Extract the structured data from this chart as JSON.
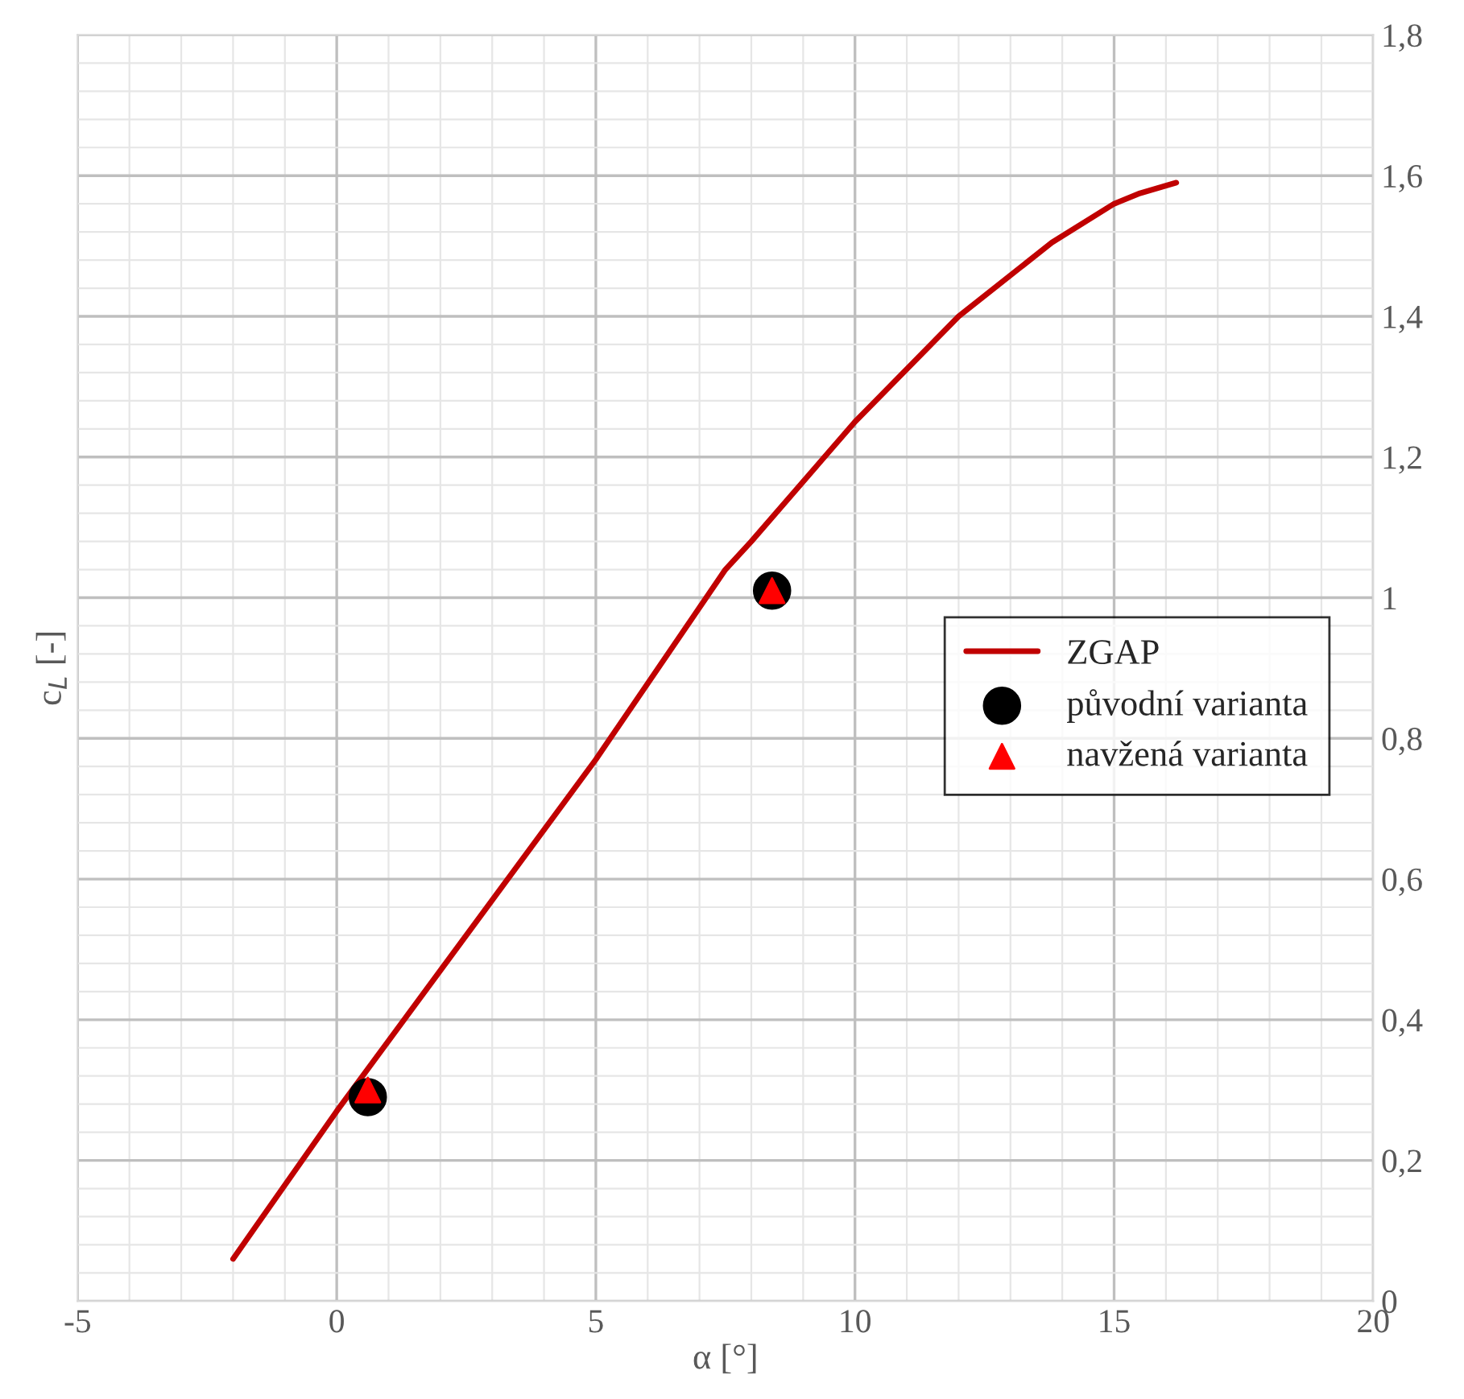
{
  "chart_data": {
    "type": "line",
    "xlabel": "α [°]",
    "ylabel": "c$_{L}$ [-]",
    "xlim": [
      -5,
      20
    ],
    "xticks": [
      -5,
      0,
      5,
      10,
      15,
      20
    ],
    "ylim": [
      0,
      1.8
    ],
    "yticks": [
      0,
      {
        "value": 0.2,
        "label": "0,2"
      },
      {
        "value": 0.4,
        "label": "0,4"
      },
      {
        "value": 0.6,
        "label": "0,6"
      },
      {
        "value": 0.8,
        "label": "0,8"
      },
      1,
      {
        "value": 1.2,
        "label": "1,2"
      },
      {
        "value": 1.4,
        "label": "1,4"
      },
      {
        "value": 1.6,
        "label": "1,6"
      },
      {
        "value": 1.8,
        "label": "1,8"
      }
    ],
    "grid": true,
    "legend": "center right",
    "series": [
      {
        "name": "ZGAP",
        "color": "#c00000",
        "marker": "none",
        "x": [
          -2,
          0,
          2,
          5,
          7.5,
          8,
          10,
          12,
          13.8,
          15,
          15.5,
          16.2
        ],
        "values": [
          0.06,
          0.27,
          0.47,
          0.77,
          1.04,
          1.08,
          1.25,
          1.4,
          1.505,
          1.56,
          1.575,
          1.59
        ]
      },
      {
        "name": "původní varianta",
        "type": "scatter",
        "color": "#000000",
        "marker": "circle",
        "x": [
          0.6,
          8.4
        ],
        "values": [
          0.29,
          1.01
        ]
      },
      {
        "name": "navžená varianta",
        "type": "scatter",
        "color": "#ff0000",
        "marker": "triangle",
        "x": [
          0.6,
          8.4
        ],
        "values": [
          0.3,
          1.01
        ]
      }
    ]
  }
}
